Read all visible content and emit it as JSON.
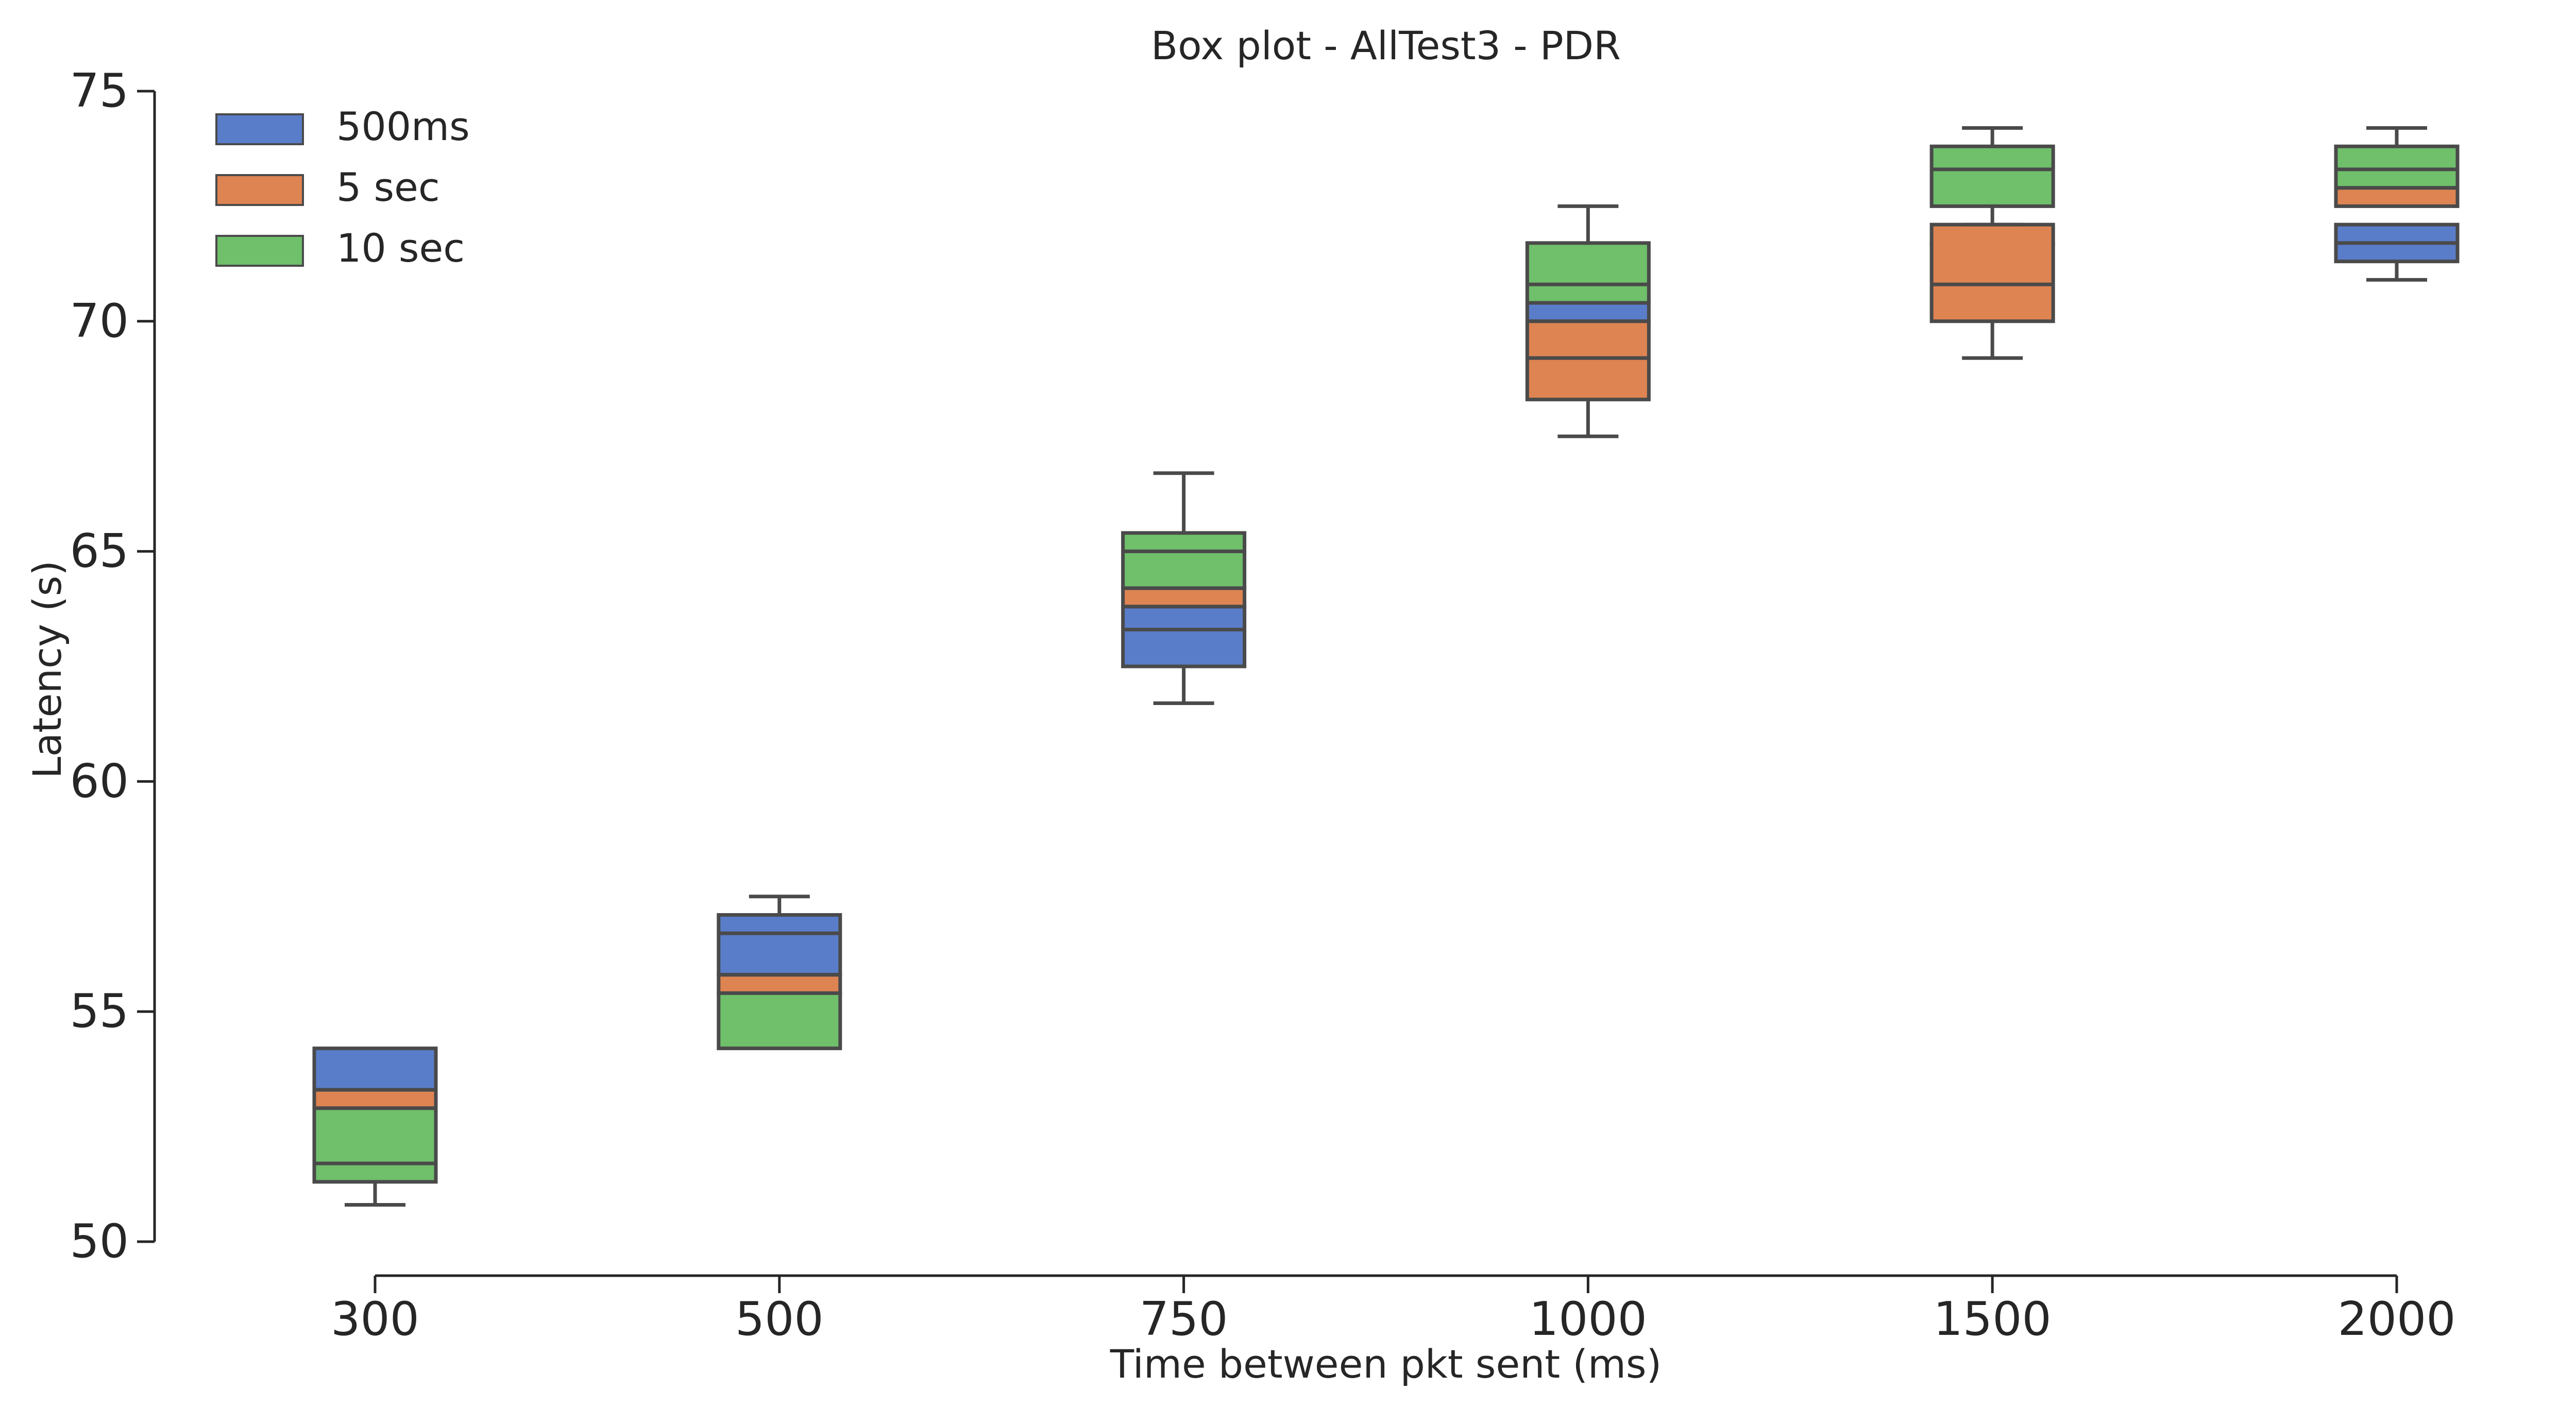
{
  "chart_data": {
    "type": "box",
    "title": "Box plot - AllTest3 - PDR",
    "xlabel": "Time between pkt sent (ms)",
    "ylabel": "Latency (s)",
    "categories": [
      "300",
      "500",
      "750",
      "1000",
      "1500",
      "2000"
    ],
    "ylim": [
      50,
      75
    ],
    "yticks": [
      "50",
      "55",
      "60",
      "65",
      "70",
      "75"
    ],
    "grid": false,
    "legend_position": "top-left",
    "series": [
      {
        "name": "500ms",
        "color": "#5A7DC9",
        "boxes": [
          {
            "whisker_low": 52.5,
            "q1": 52.5,
            "median": 52.5,
            "q3": 54.2,
            "whisker_high": 54.2
          },
          {
            "whisker_low": 55.8,
            "q1": 55.8,
            "median": 56.7,
            "q3": 57.1,
            "whisker_high": 57.5
          },
          {
            "whisker_low": 61.7,
            "q1": 62.5,
            "median": 63.3,
            "q3": 63.8,
            "whisker_high": 63.8
          },
          {
            "whisker_low": 70.0,
            "q1": 70.0,
            "median": 70.4,
            "q3": 70.4,
            "whisker_high": 70.4
          },
          {
            "whisker_low": 71.7,
            "q1": 71.7,
            "median": 71.7,
            "q3": 71.7,
            "whisker_high": 71.7
          },
          {
            "whisker_low": 70.9,
            "q1": 71.3,
            "median": 71.7,
            "q3": 72.1,
            "whisker_high": 72.1
          }
        ]
      },
      {
        "name": "5 sec",
        "color": "#DD8452",
        "boxes": [
          {
            "whisker_low": 52.5,
            "q1": 52.9,
            "median": 53.3,
            "q3": 53.3,
            "whisker_high": 53.3
          },
          {
            "whisker_low": 55.4,
            "q1": 55.4,
            "median": 55.8,
            "q3": 55.8,
            "whisker_high": 55.8
          },
          {
            "whisker_low": 63.8,
            "q1": 63.8,
            "median": 63.8,
            "q3": 64.2,
            "whisker_high": 64.2
          },
          {
            "whisker_low": 67.5,
            "q1": 68.3,
            "median": 69.2,
            "q3": 70.0,
            "whisker_high": 70.0
          },
          {
            "whisker_low": 69.2,
            "q1": 70.0,
            "median": 70.8,
            "q3": 72.1,
            "whisker_high": 72.1
          },
          {
            "whisker_low": 72.5,
            "q1": 72.5,
            "median": 72.9,
            "q3": 72.9,
            "whisker_high": 72.9
          }
        ]
      },
      {
        "name": "10 sec",
        "color": "#6FBF6B",
        "boxes": [
          {
            "whisker_low": 50.8,
            "q1": 51.3,
            "median": 51.7,
            "q3": 52.9,
            "whisker_high": 52.9
          },
          {
            "whisker_low": 54.2,
            "q1": 54.2,
            "median": 55.4,
            "q3": 55.4,
            "whisker_high": 55.4
          },
          {
            "whisker_low": 64.2,
            "q1": 64.2,
            "median": 65.0,
            "q3": 65.4,
            "whisker_high": 66.7
          },
          {
            "whisker_low": 70.4,
            "q1": 70.4,
            "median": 70.8,
            "q3": 71.7,
            "whisker_high": 72.5
          },
          {
            "whisker_low": 72.1,
            "q1": 72.5,
            "median": 73.3,
            "q3": 73.8,
            "whisker_high": 74.2
          },
          {
            "whisker_low": 72.9,
            "q1": 72.9,
            "median": 73.3,
            "q3": 73.8,
            "whisker_high": 74.2
          }
        ]
      }
    ]
  }
}
